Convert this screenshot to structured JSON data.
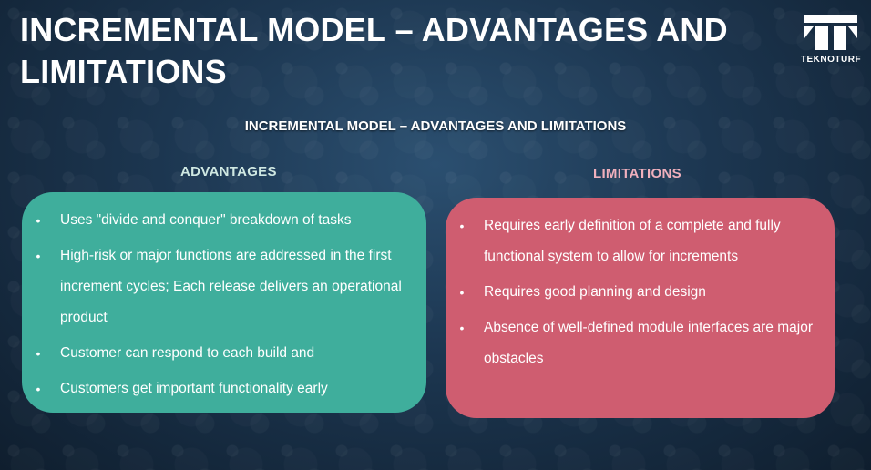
{
  "slide": {
    "title": "INCREMENTAL MODEL – ADVANTAGES AND LIMITATIONS",
    "subtitle": "INCREMENTAL MODEL – ADVANTAGES AND LIMITATIONS",
    "logo_text": "TEKNOTURF"
  },
  "advantages": {
    "heading": "ADVANTAGES",
    "color": "#3fae9c",
    "items": [
      "Uses  \"divide and conquer\" breakdown of tasks",
      "High-risk or major functions are addressed in the first increment cycles; Each release delivers an operational product",
      "Customer can respond to each build and",
      "Customers get important functionality early"
    ]
  },
  "limitations": {
    "heading": "LIMITATIONS",
    "color": "#cf5d70",
    "items": [
      "Requires early definition of a complete and fully functional system to allow for increments",
      "Requires good planning and design",
      "Absence of well-defined module interfaces are major obstacles"
    ]
  }
}
